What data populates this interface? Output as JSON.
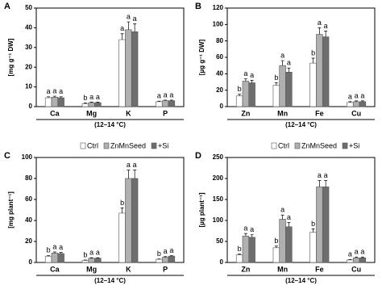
{
  "chart_data": [
    {
      "type": "bar",
      "panel": "A",
      "ylabel": "[mg g⁻¹ DW]",
      "xlabel": "(12–14 °C)",
      "categories": [
        "Ca",
        "Mg",
        "K",
        "P"
      ],
      "ylim": [
        0,
        50
      ],
      "yticks": [
        0,
        10,
        20,
        30,
        40,
        50
      ],
      "legend": true,
      "series": [
        {
          "name": "Ctrl",
          "color": "#ffffff",
          "values": [
            4.5,
            1.5,
            34,
            2.5
          ],
          "errors": [
            0.5,
            0.3,
            3,
            0.3
          ],
          "letters": [
            "a",
            "b",
            "a",
            "a"
          ]
        },
        {
          "name": "ZnMnSeed",
          "color": "#b0b0b0",
          "values": [
            4.8,
            2,
            39,
            3
          ],
          "errors": [
            0.5,
            0.3,
            4,
            0.3
          ],
          "letters": [
            "a",
            "a",
            "a",
            "a"
          ]
        },
        {
          "name": "+Si",
          "color": "#6e6e6e",
          "values": [
            4.5,
            2,
            38,
            3
          ],
          "errors": [
            0.5,
            0.3,
            4,
            0.3
          ],
          "letters": [
            "a",
            "a",
            "a",
            "a"
          ]
        }
      ]
    },
    {
      "type": "bar",
      "panel": "B",
      "ylabel": "[µg g⁻¹ DW]",
      "xlabel": "(12–14 °C)",
      "categories": [
        "Zn",
        "Mn",
        "Fe",
        "Cu"
      ],
      "ylim": [
        0,
        120
      ],
      "yticks": [
        0,
        20,
        40,
        60,
        80,
        100,
        120
      ],
      "legend": true,
      "series": [
        {
          "name": "Ctrl",
          "color": "#ffffff",
          "values": [
            13,
            26,
            53,
            5
          ],
          "errors": [
            2,
            3,
            6,
            1
          ],
          "letters": [
            "b",
            "b",
            "b",
            "a"
          ]
        },
        {
          "name": "ZnMnSeed",
          "color": "#b0b0b0",
          "values": [
            31,
            50,
            88,
            6
          ],
          "errors": [
            3,
            6,
            8,
            1
          ],
          "letters": [
            "a",
            "a",
            "a",
            "a"
          ]
        },
        {
          "name": "+Si",
          "color": "#6e6e6e",
          "values": [
            29,
            42,
            85,
            6
          ],
          "errors": [
            3,
            5,
            7,
            1
          ],
          "letters": [
            "a",
            "a",
            "a",
            "a"
          ]
        }
      ]
    },
    {
      "type": "bar",
      "panel": "C",
      "ylabel": "[mg plant⁻¹]",
      "xlabel": "(12–14 °C)",
      "categories": [
        "Ca",
        "Mg",
        "K",
        "P"
      ],
      "ylim": [
        0,
        100
      ],
      "yticks": [
        0,
        20,
        40,
        60,
        80,
        100
      ],
      "legend": false,
      "series": [
        {
          "name": "Ctrl",
          "color": "#ffffff",
          "values": [
            6,
            2,
            47,
            3
          ],
          "errors": [
            0.7,
            0.3,
            5,
            0.4
          ],
          "letters": [
            "b",
            "b",
            "b",
            "b"
          ]
        },
        {
          "name": "ZnMnSeed",
          "color": "#b0b0b0",
          "values": [
            9,
            4,
            80,
            5
          ],
          "errors": [
            1,
            0.5,
            8,
            0.6
          ],
          "letters": [
            "a",
            "a",
            "a",
            "a"
          ]
        },
        {
          "name": "+Si",
          "color": "#6e6e6e",
          "values": [
            8.5,
            4,
            80,
            6
          ],
          "errors": [
            1,
            0.5,
            8,
            0.6
          ],
          "letters": [
            "a",
            "a",
            "a",
            "a"
          ]
        }
      ]
    },
    {
      "type": "bar",
      "panel": "D",
      "ylabel": "[µg plant⁻¹]",
      "xlabel": "(12–14 °C)",
      "categories": [
        "Zn",
        "Mn",
        "Fe",
        "Cu"
      ],
      "ylim": [
        0,
        250
      ],
      "yticks": [
        0,
        50,
        100,
        150,
        200,
        250
      ],
      "legend": false,
      "series": [
        {
          "name": "Ctrl",
          "color": "#ffffff",
          "values": [
            18,
            35,
            72,
            6
          ],
          "errors": [
            2,
            4,
            8,
            1
          ],
          "letters": [
            "b",
            "b",
            "b",
            "a"
          ]
        },
        {
          "name": "ZnMnSeed",
          "color": "#b0b0b0",
          "values": [
            63,
            103,
            180,
            11
          ],
          "errors": [
            6,
            10,
            15,
            2
          ],
          "letters": [
            "a",
            "a",
            "a",
            "a"
          ]
        },
        {
          "name": "+Si",
          "color": "#6e6e6e",
          "values": [
            60,
            85,
            180,
            11
          ],
          "errors": [
            6,
            10,
            15,
            2
          ],
          "letters": [
            "a",
            "a",
            "a",
            "a"
          ]
        }
      ]
    }
  ]
}
